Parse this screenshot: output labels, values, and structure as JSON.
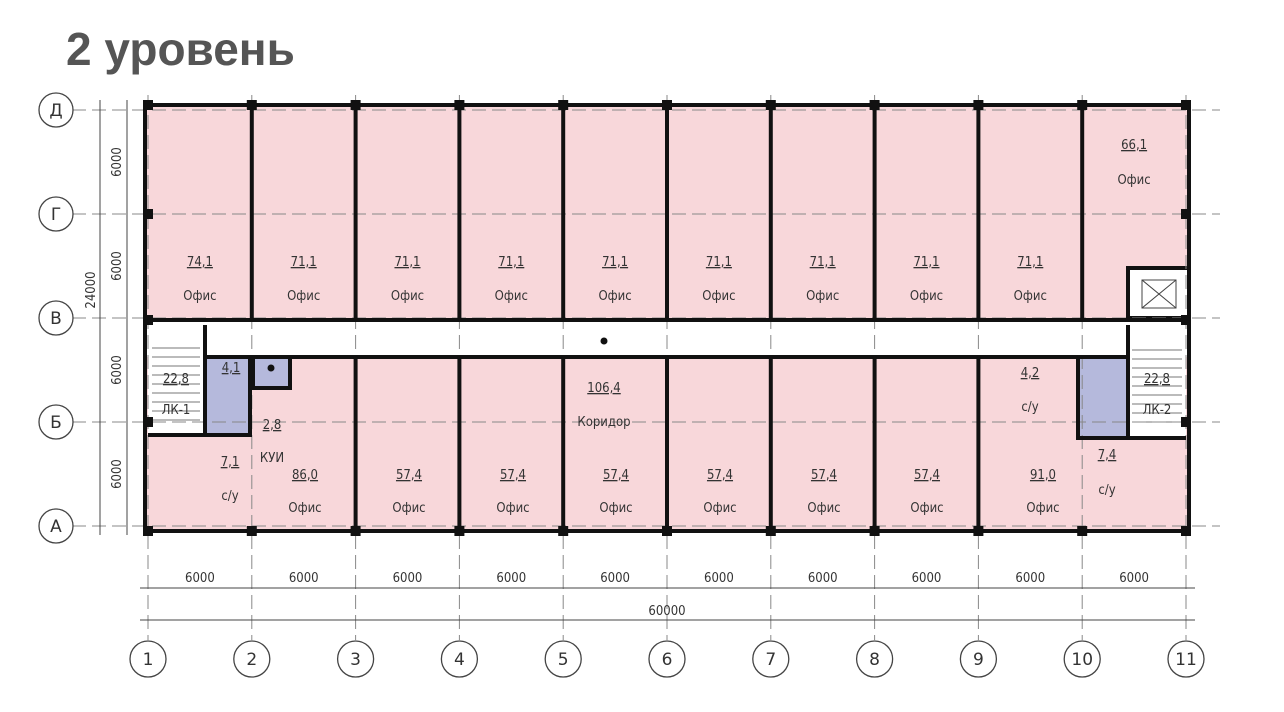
{
  "title": "2 уровень",
  "colors": {
    "office": "#f8d7da",
    "wc": "#b5b9dc",
    "wall": "#111111",
    "stair": "#ffffff"
  },
  "rows": [
    "Д",
    "Г",
    "В",
    "Б",
    "А"
  ],
  "columns": [
    "1",
    "2",
    "3",
    "4",
    "5",
    "6",
    "7",
    "8",
    "9",
    "10",
    "11"
  ],
  "dims": {
    "column_spans": [
      "6000",
      "6000",
      "6000",
      "6000",
      "6000",
      "6000",
      "6000",
      "6000",
      "6000",
      "6000"
    ],
    "total_width": "60000",
    "row_spans": [
      "6000",
      "6000",
      "6000",
      "6000"
    ],
    "total_height": "24000"
  },
  "top_rooms": [
    {
      "area": "74,1",
      "name": "Офис"
    },
    {
      "area": "71,1",
      "name": "Офис"
    },
    {
      "area": "71,1",
      "name": "Офис"
    },
    {
      "area": "71,1",
      "name": "Офис"
    },
    {
      "area": "71,1",
      "name": "Офис"
    },
    {
      "area": "71,1",
      "name": "Офис"
    },
    {
      "area": "71,1",
      "name": "Офис"
    },
    {
      "area": "71,1",
      "name": "Офис"
    },
    {
      "area": "71,1",
      "name": "Офис"
    },
    {
      "area": "66,1",
      "name": "Офис"
    }
  ],
  "bottom_rooms": [
    {
      "area": "86,0",
      "name": "Офис"
    },
    {
      "area": "57,4",
      "name": "Офис"
    },
    {
      "area": "57,4",
      "name": "Офис"
    },
    {
      "area": "57,4",
      "name": "Офис"
    },
    {
      "area": "57,4",
      "name": "Офис"
    },
    {
      "area": "57,4",
      "name": "Офис"
    },
    {
      "area": "57,4",
      "name": "Офис"
    },
    {
      "area": "91,0",
      "name": "Офис"
    }
  ],
  "corridor": {
    "area": "106,4",
    "name": "Коридор"
  },
  "stair_left": {
    "area": "22,8",
    "name": "ЛК-1"
  },
  "stair_right": {
    "area": "22,8",
    "name": "ЛК-2"
  },
  "wc_left_small": {
    "area": "4,1"
  },
  "kui": {
    "area": "2,8",
    "name": "КУИ"
  },
  "wc_left": {
    "area": "7,1",
    "name": "с/у"
  },
  "wc_right_top": {
    "area": "4,2",
    "name": "с/у"
  },
  "wc_right": {
    "area": "7,4",
    "name": "с/у"
  }
}
